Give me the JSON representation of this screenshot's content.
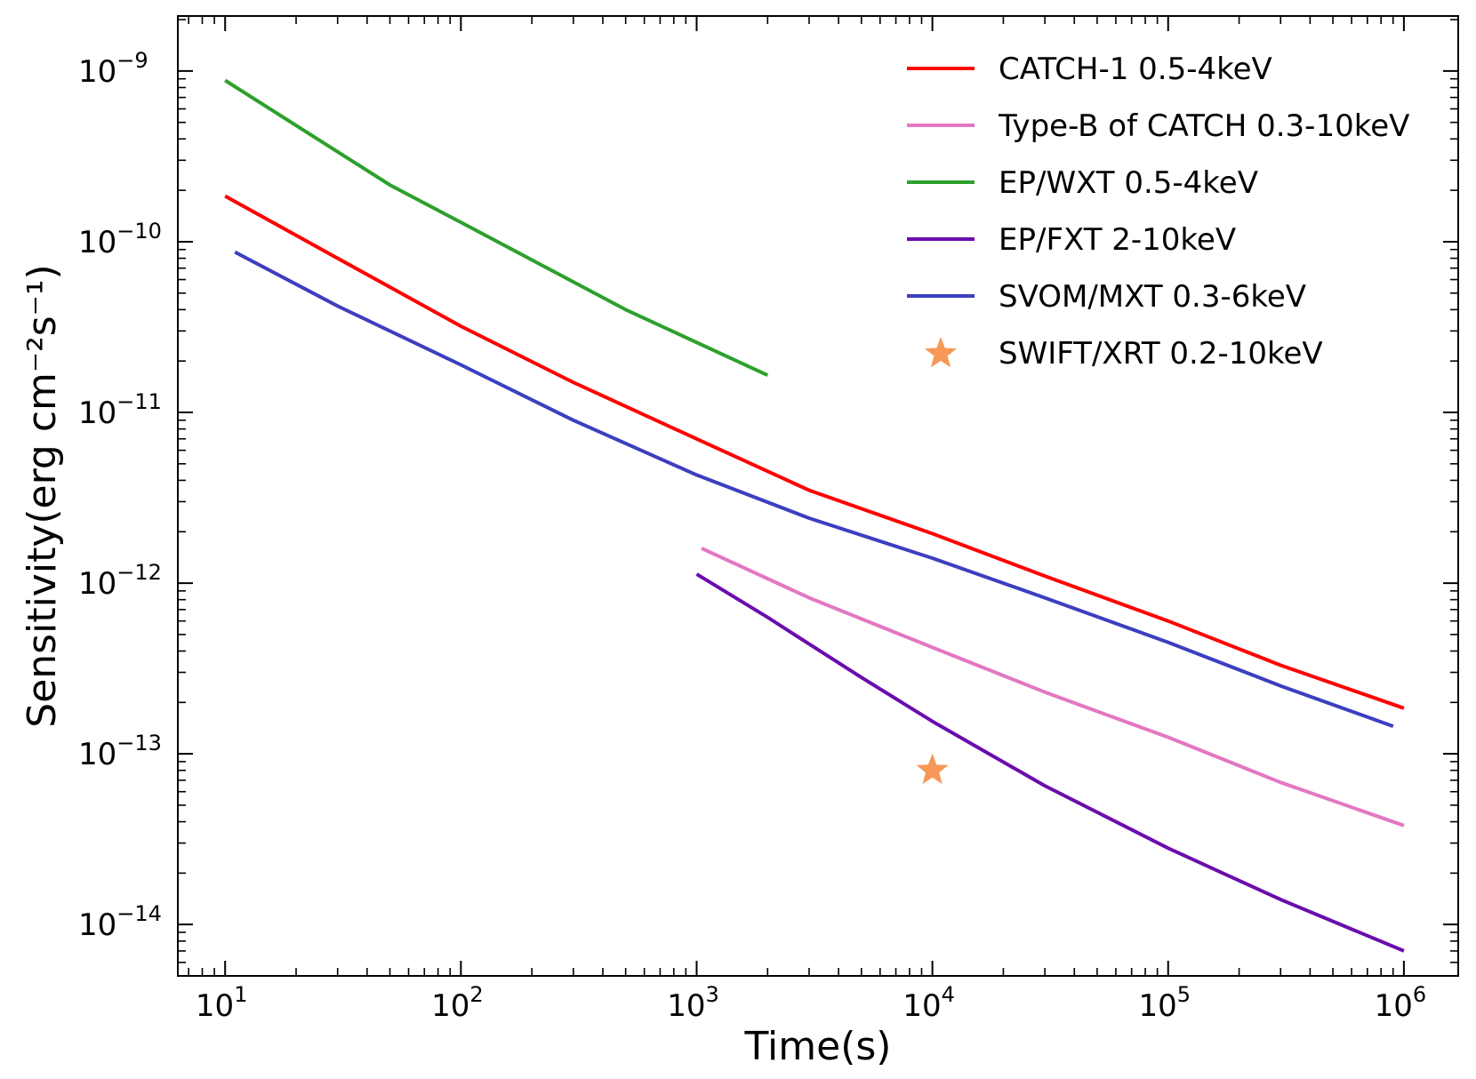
{
  "chart_data": {
    "type": "line",
    "title": "",
    "xlabel": "Time(s)",
    "ylabel": "Sensitivity(erg cm⁻²s⁻¹)",
    "xscale": "log",
    "yscale": "log",
    "xlim": [
      6.3,
      1700000
    ],
    "ylim": [
      5e-15,
      2.1e-09
    ],
    "x_ticks": [
      {
        "value": 10,
        "base": "10",
        "exp": "1"
      },
      {
        "value": 100,
        "base": "10",
        "exp": "2"
      },
      {
        "value": 1000,
        "base": "10",
        "exp": "3"
      },
      {
        "value": 10000,
        "base": "10",
        "exp": "4"
      },
      {
        "value": 100000,
        "base": "10",
        "exp": "5"
      },
      {
        "value": 1000000,
        "base": "10",
        "exp": "6"
      }
    ],
    "y_ticks": [
      {
        "value": 1e-09,
        "base": "10",
        "exp": "−9"
      },
      {
        "value": 1e-10,
        "base": "10",
        "exp": "−10"
      },
      {
        "value": 1e-11,
        "base": "10",
        "exp": "−11"
      },
      {
        "value": 1e-12,
        "base": "10",
        "exp": "−12"
      },
      {
        "value": 1e-13,
        "base": "10",
        "exp": "−13"
      },
      {
        "value": 1e-14,
        "base": "10",
        "exp": "−14"
      }
    ],
    "grid": false,
    "legend_position": "top-right",
    "series": [
      {
        "name": "CATCH-1 0.5-4keV",
        "color": "#ff0000",
        "kind": "line",
        "x": [
          10,
          30,
          100,
          300,
          1000,
          3000,
          10000,
          30000,
          100000,
          300000,
          1000000
        ],
        "y": [
          1.85e-10,
          8e-11,
          3.2e-11,
          1.5e-11,
          7e-12,
          3.5e-12,
          1.95e-12,
          1.1e-12,
          6e-13,
          3.3e-13,
          1.85e-13
        ]
      },
      {
        "name": "Type-B of CATCH 0.3-10keV",
        "color": "#e377c2",
        "kind": "line",
        "x": [
          1050,
          3000,
          10000,
          30000,
          100000,
          300000,
          1000000
        ],
        "y": [
          1.6e-12,
          8.2e-13,
          4.2e-13,
          2.3e-13,
          1.25e-13,
          6.8e-14,
          3.8e-14
        ]
      },
      {
        "name": "EP/WXT 0.5-4keV",
        "color": "#2ca02c",
        "kind": "line",
        "x": [
          10,
          50,
          100,
          500,
          2000
        ],
        "y": [
          8.8e-10,
          2.15e-10,
          1.3e-10,
          4e-11,
          1.65e-11
        ]
      },
      {
        "name": "EP/FXT 2-10keV",
        "color": "#6a0dad",
        "kind": "line",
        "x": [
          1000,
          2000,
          5000,
          10000,
          30000,
          100000,
          300000,
          1000000
        ],
        "y": [
          1.13e-12,
          6.3e-13,
          2.8e-13,
          1.55e-13,
          6.5e-14,
          2.8e-14,
          1.4e-14,
          7e-15
        ]
      },
      {
        "name": "SVOM/MXT 0.3-6keV",
        "color": "#3b3fbf",
        "kind": "line",
        "x": [
          11,
          30,
          100,
          300,
          1000,
          3000,
          10000,
          30000,
          100000,
          300000,
          900000
        ],
        "y": [
          8.7e-11,
          4.2e-11,
          1.9e-11,
          9e-12,
          4.3e-12,
          2.4e-12,
          1.4e-12,
          8.2e-13,
          4.5e-13,
          2.5e-13,
          1.45e-13
        ]
      },
      {
        "name": "SWIFT/XRT 0.2-10keV",
        "color": "#f79858",
        "kind": "marker",
        "x": [
          10000
        ],
        "y": [
          8e-14
        ]
      }
    ]
  }
}
